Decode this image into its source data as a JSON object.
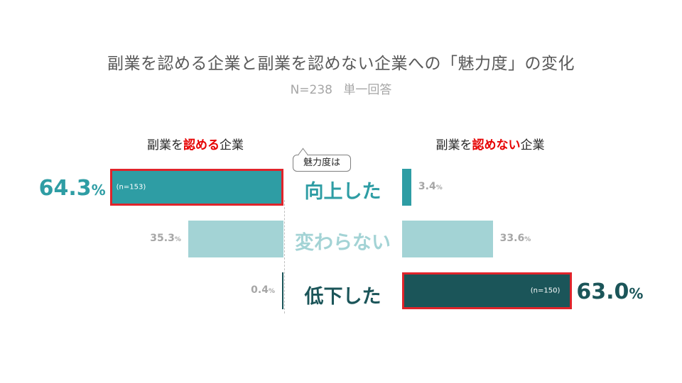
{
  "title": "副業を認める企業と副業を認めない企業への「魅力度」の変化",
  "subtitle": {
    "n": "N=238",
    "type": "単一回答"
  },
  "left_header": {
    "pre": "副業を",
    "em": "認める",
    "post": "企業"
  },
  "right_header": {
    "pre": "副業を",
    "em": "認めない",
    "post": "企業"
  },
  "callout": "魅力度は",
  "colors": {
    "up": "#2e9da4",
    "same": "#a3d3d5",
    "down": "#1b5559",
    "highlight": "#e0242b",
    "accent_text": "#e60000"
  },
  "chart_data": {
    "type": "bar",
    "categories": [
      "向上した",
      "変わらない",
      "低下した"
    ],
    "series": [
      {
        "name": "副業を認める企業",
        "values": [
          64.3,
          35.3,
          0.4
        ],
        "n": [
          "(n=153)",
          "",
          ""
        ]
      },
      {
        "name": "副業を認めない企業",
        "values": [
          3.4,
          33.6,
          63.0
        ],
        "n": [
          "",
          "",
          "(n=150)"
        ]
      }
    ],
    "labels": {
      "left": [
        "64.3",
        "35.3",
        "0.4"
      ],
      "right": [
        "3.4",
        "33.6",
        "63.0"
      ]
    },
    "unit": "%",
    "highlighted": {
      "left": "向上した",
      "right": "低下した"
    },
    "xlim": [
      0,
      100
    ]
  }
}
